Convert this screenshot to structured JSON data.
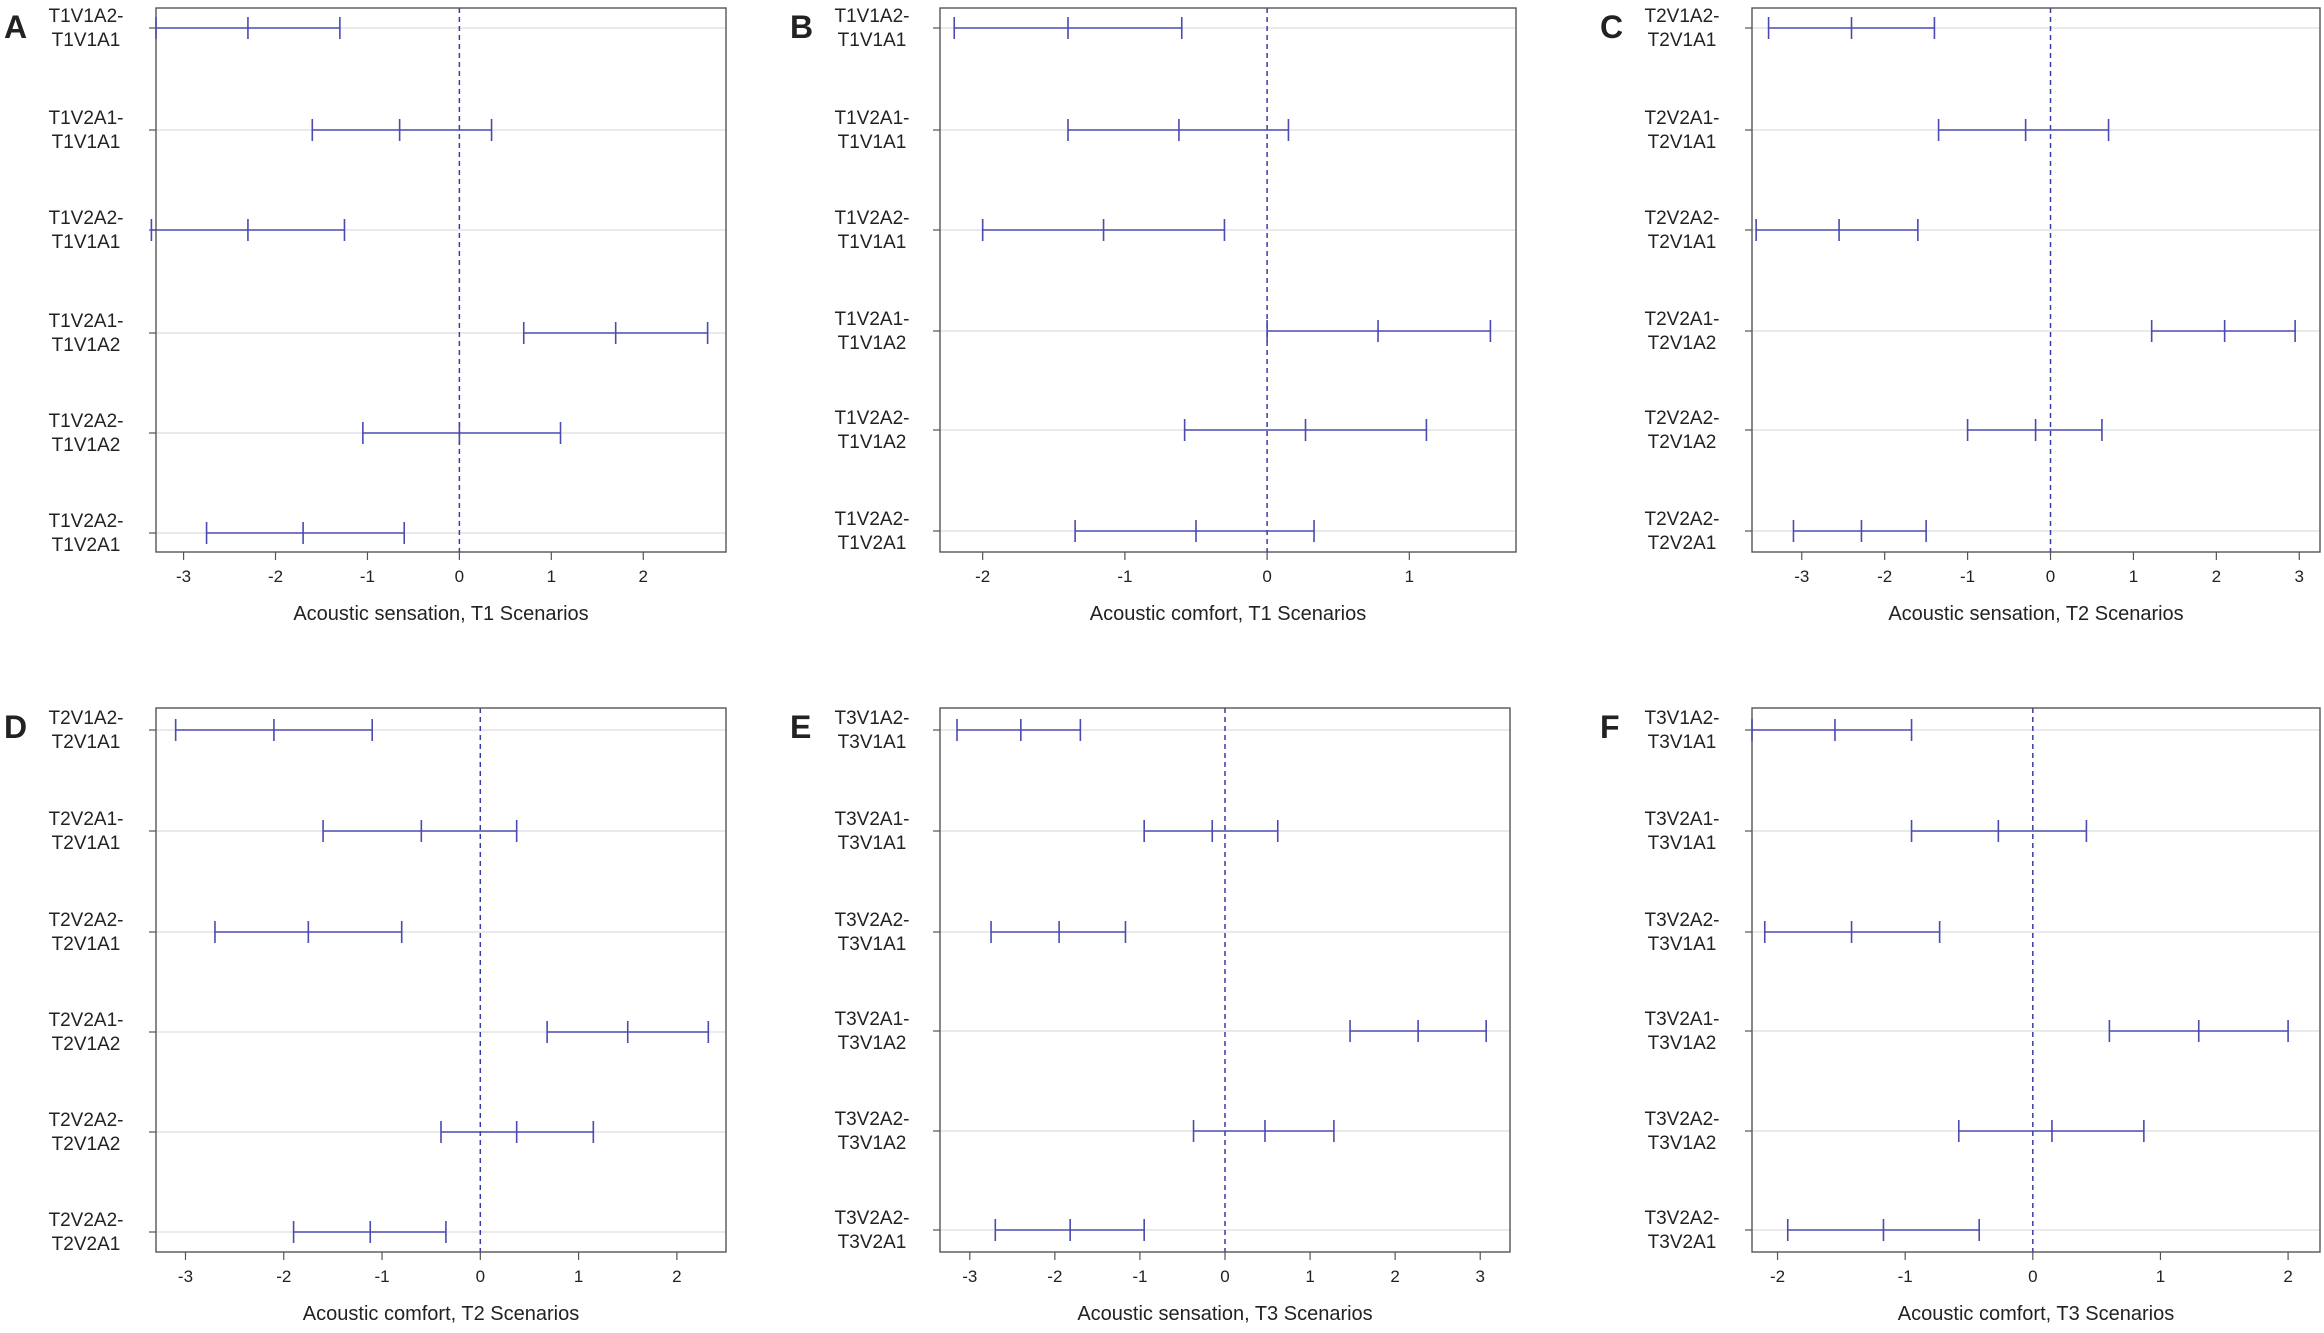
{
  "chart_data": [
    {
      "panel": "A",
      "type": "errorbar",
      "xlabel": "Acoustic sensation, T1 Scenarios",
      "xlim": [
        -3.3,
        2.9
      ],
      "ticks": [
        -3,
        -2,
        -1,
        0,
        1,
        2
      ],
      "tick_labels": [
        "-3",
        "-2",
        "-1",
        "0",
        "1",
        "2"
      ],
      "reference_line": 0,
      "rows": [
        {
          "label_line1": "T1V1A2-",
          "label_line2": "T1V1A1",
          "lower": -3.3,
          "estimate": -2.3,
          "upper": -1.3
        },
        {
          "label_line1": "T1V2A1-",
          "label_line2": "T1V1A1",
          "lower": -1.6,
          "estimate": -0.65,
          "upper": 0.35
        },
        {
          "label_line1": "T1V2A2-",
          "label_line2": "T1V1A1",
          "lower": -3.35,
          "estimate": -2.3,
          "upper": -1.25
        },
        {
          "label_line1": "T1V2A1-",
          "label_line2": "T1V1A2",
          "lower": 0.7,
          "estimate": 1.7,
          "upper": 2.7
        },
        {
          "label_line1": "T1V2A2-",
          "label_line2": "T1V1A2",
          "lower": -1.05,
          "estimate": 0.0,
          "upper": 1.1
        },
        {
          "label_line1": "T1V2A2-",
          "label_line2": "T1V2A1",
          "lower": -2.75,
          "estimate": -1.7,
          "upper": -0.6
        }
      ]
    },
    {
      "panel": "B",
      "type": "errorbar",
      "xlabel": "Acoustic comfort, T1 Scenarios",
      "xlim": [
        -2.3,
        1.75
      ],
      "ticks": [
        -2,
        -1,
        0,
        1
      ],
      "tick_labels": [
        "-2",
        "-1",
        "0",
        "1"
      ],
      "reference_line": 0,
      "rows": [
        {
          "label_line1": "T1V1A2-",
          "label_line2": "T1V1A1",
          "lower": -2.2,
          "estimate": -1.4,
          "upper": -0.6
        },
        {
          "label_line1": "T1V2A1-",
          "label_line2": "T1V1A1",
          "lower": -1.4,
          "estimate": -0.62,
          "upper": 0.15
        },
        {
          "label_line1": "T1V2A2-",
          "label_line2": "T1V1A1",
          "lower": -2.0,
          "estimate": -1.15,
          "upper": -0.3
        },
        {
          "label_line1": "T1V2A1-",
          "label_line2": "T1V1A2",
          "lower": 0.0,
          "estimate": 0.78,
          "upper": 1.57
        },
        {
          "label_line1": "T1V2A2-",
          "label_line2": "T1V1A2",
          "lower": -0.58,
          "estimate": 0.27,
          "upper": 1.12
        },
        {
          "label_line1": "T1V2A2-",
          "label_line2": "T1V2A1",
          "lower": -1.35,
          "estimate": -0.5,
          "upper": 0.33
        }
      ]
    },
    {
      "panel": "C",
      "type": "errorbar",
      "xlabel": "Acoustic sensation, T2 Scenarios",
      "xlim": [
        -3.6,
        3.25
      ],
      "ticks": [
        -3,
        -2,
        -1,
        0,
        1,
        2,
        3
      ],
      "tick_labels": [
        "-3",
        "-2",
        "-1",
        "0",
        "1",
        "2",
        "3"
      ],
      "reference_line": 0,
      "rows": [
        {
          "label_line1": "T2V1A2-",
          "label_line2": "T2V1A1",
          "lower": -3.4,
          "estimate": -2.4,
          "upper": -1.4
        },
        {
          "label_line1": "T2V2A1-",
          "label_line2": "T2V1A1",
          "lower": -1.35,
          "estimate": -0.3,
          "upper": 0.7
        },
        {
          "label_line1": "T2V2A2-",
          "label_line2": "T2V1A1",
          "lower": -3.55,
          "estimate": -2.55,
          "upper": -1.6
        },
        {
          "label_line1": "T2V2A1-",
          "label_line2": "T2V1A2",
          "lower": 1.22,
          "estimate": 2.1,
          "upper": 2.95
        },
        {
          "label_line1": "T2V2A2-",
          "label_line2": "T2V1A2",
          "lower": -1.0,
          "estimate": -0.18,
          "upper": 0.62
        },
        {
          "label_line1": "T2V2A2-",
          "label_line2": "T2V2A1",
          "lower": -3.1,
          "estimate": -2.28,
          "upper": -1.5
        }
      ]
    },
    {
      "panel": "D",
      "type": "errorbar",
      "xlabel": "Acoustic comfort, T2 Scenarios",
      "xlim": [
        -3.3,
        2.5
      ],
      "ticks": [
        -3,
        -2,
        -1,
        0,
        1,
        2
      ],
      "tick_labels": [
        "-3",
        "-2",
        "-1",
        "0",
        "1",
        "2"
      ],
      "reference_line": 0,
      "rows": [
        {
          "label_line1": "T2V1A2-",
          "label_line2": "T2V1A1",
          "lower": -3.1,
          "estimate": -2.1,
          "upper": -1.1
        },
        {
          "label_line1": "T2V2A1-",
          "label_line2": "T2V1A1",
          "lower": -1.6,
          "estimate": -0.6,
          "upper": 0.37
        },
        {
          "label_line1": "T2V2A2-",
          "label_line2": "T2V1A1",
          "lower": -2.7,
          "estimate": -1.75,
          "upper": -0.8
        },
        {
          "label_line1": "T2V2A1-",
          "label_line2": "T2V1A2",
          "lower": 0.68,
          "estimate": 1.5,
          "upper": 2.32
        },
        {
          "label_line1": "T2V2A2-",
          "label_line2": "T2V1A2",
          "lower": -0.4,
          "estimate": 0.37,
          "upper": 1.15
        },
        {
          "label_line1": "T2V2A2-",
          "label_line2": "T2V2A1",
          "lower": -1.9,
          "estimate": -1.12,
          "upper": -0.35
        }
      ]
    },
    {
      "panel": "E",
      "type": "errorbar",
      "xlabel": "Acoustic sensation, T3 Scenarios",
      "xlim": [
        -3.35,
        3.35
      ],
      "ticks": [
        -3,
        -2,
        -1,
        0,
        1,
        2,
        3
      ],
      "tick_labels": [
        "-3",
        "-2",
        "-1",
        "0",
        "1",
        "2",
        "3"
      ],
      "reference_line": 0,
      "rows": [
        {
          "label_line1": "T3V1A2-",
          "label_line2": "T3V1A1",
          "lower": -3.15,
          "estimate": -2.4,
          "upper": -1.7
        },
        {
          "label_line1": "T3V2A1-",
          "label_line2": "T3V1A1",
          "lower": -0.95,
          "estimate": -0.15,
          "upper": 0.62
        },
        {
          "label_line1": "T3V2A2-",
          "label_line2": "T3V1A1",
          "lower": -2.75,
          "estimate": -1.95,
          "upper": -1.17
        },
        {
          "label_line1": "T3V2A1-",
          "label_line2": "T3V1A2",
          "lower": 1.47,
          "estimate": 2.27,
          "upper": 3.07
        },
        {
          "label_line1": "T3V2A2-",
          "label_line2": "T3V1A2",
          "lower": -0.37,
          "estimate": 0.47,
          "upper": 1.28
        },
        {
          "label_line1": "T3V2A2-",
          "label_line2": "T3V2A1",
          "lower": -2.7,
          "estimate": -1.82,
          "upper": -0.95
        }
      ]
    },
    {
      "panel": "F",
      "type": "errorbar",
      "xlabel": "Acoustic comfort, T3 Scenarios",
      "xlim": [
        -2.2,
        2.25
      ],
      "ticks": [
        -2,
        -1,
        0,
        1,
        2
      ],
      "tick_labels": [
        "-2",
        "-1",
        "0",
        "1",
        "2"
      ],
      "reference_line": 0,
      "rows": [
        {
          "label_line1": "T3V1A2-",
          "label_line2": "T3V1A1",
          "lower": -2.2,
          "estimate": -1.55,
          "upper": -0.95
        },
        {
          "label_line1": "T3V2A1-",
          "label_line2": "T3V1A1",
          "lower": -0.95,
          "estimate": -0.27,
          "upper": 0.42
        },
        {
          "label_line1": "T3V2A2-",
          "label_line2": "T3V1A1",
          "lower": -2.1,
          "estimate": -1.42,
          "upper": -0.73
        },
        {
          "label_line1": "T3V2A1-",
          "label_line2": "T3V1A2",
          "lower": 0.6,
          "estimate": 1.3,
          "upper": 2.0
        },
        {
          "label_line1": "T3V2A2-",
          "label_line2": "T3V1A2",
          "lower": -0.58,
          "estimate": 0.15,
          "upper": 0.87
        },
        {
          "label_line1": "T3V2A2-",
          "label_line2": "T3V2A1",
          "lower": -1.92,
          "estimate": -1.17,
          "upper": -0.42
        }
      ]
    }
  ],
  "colors": {
    "interval": "#4a4ab0",
    "reference": "#3a3aa8",
    "grid": "#d6d6d6",
    "axis": "#555555",
    "text": "#222222"
  }
}
